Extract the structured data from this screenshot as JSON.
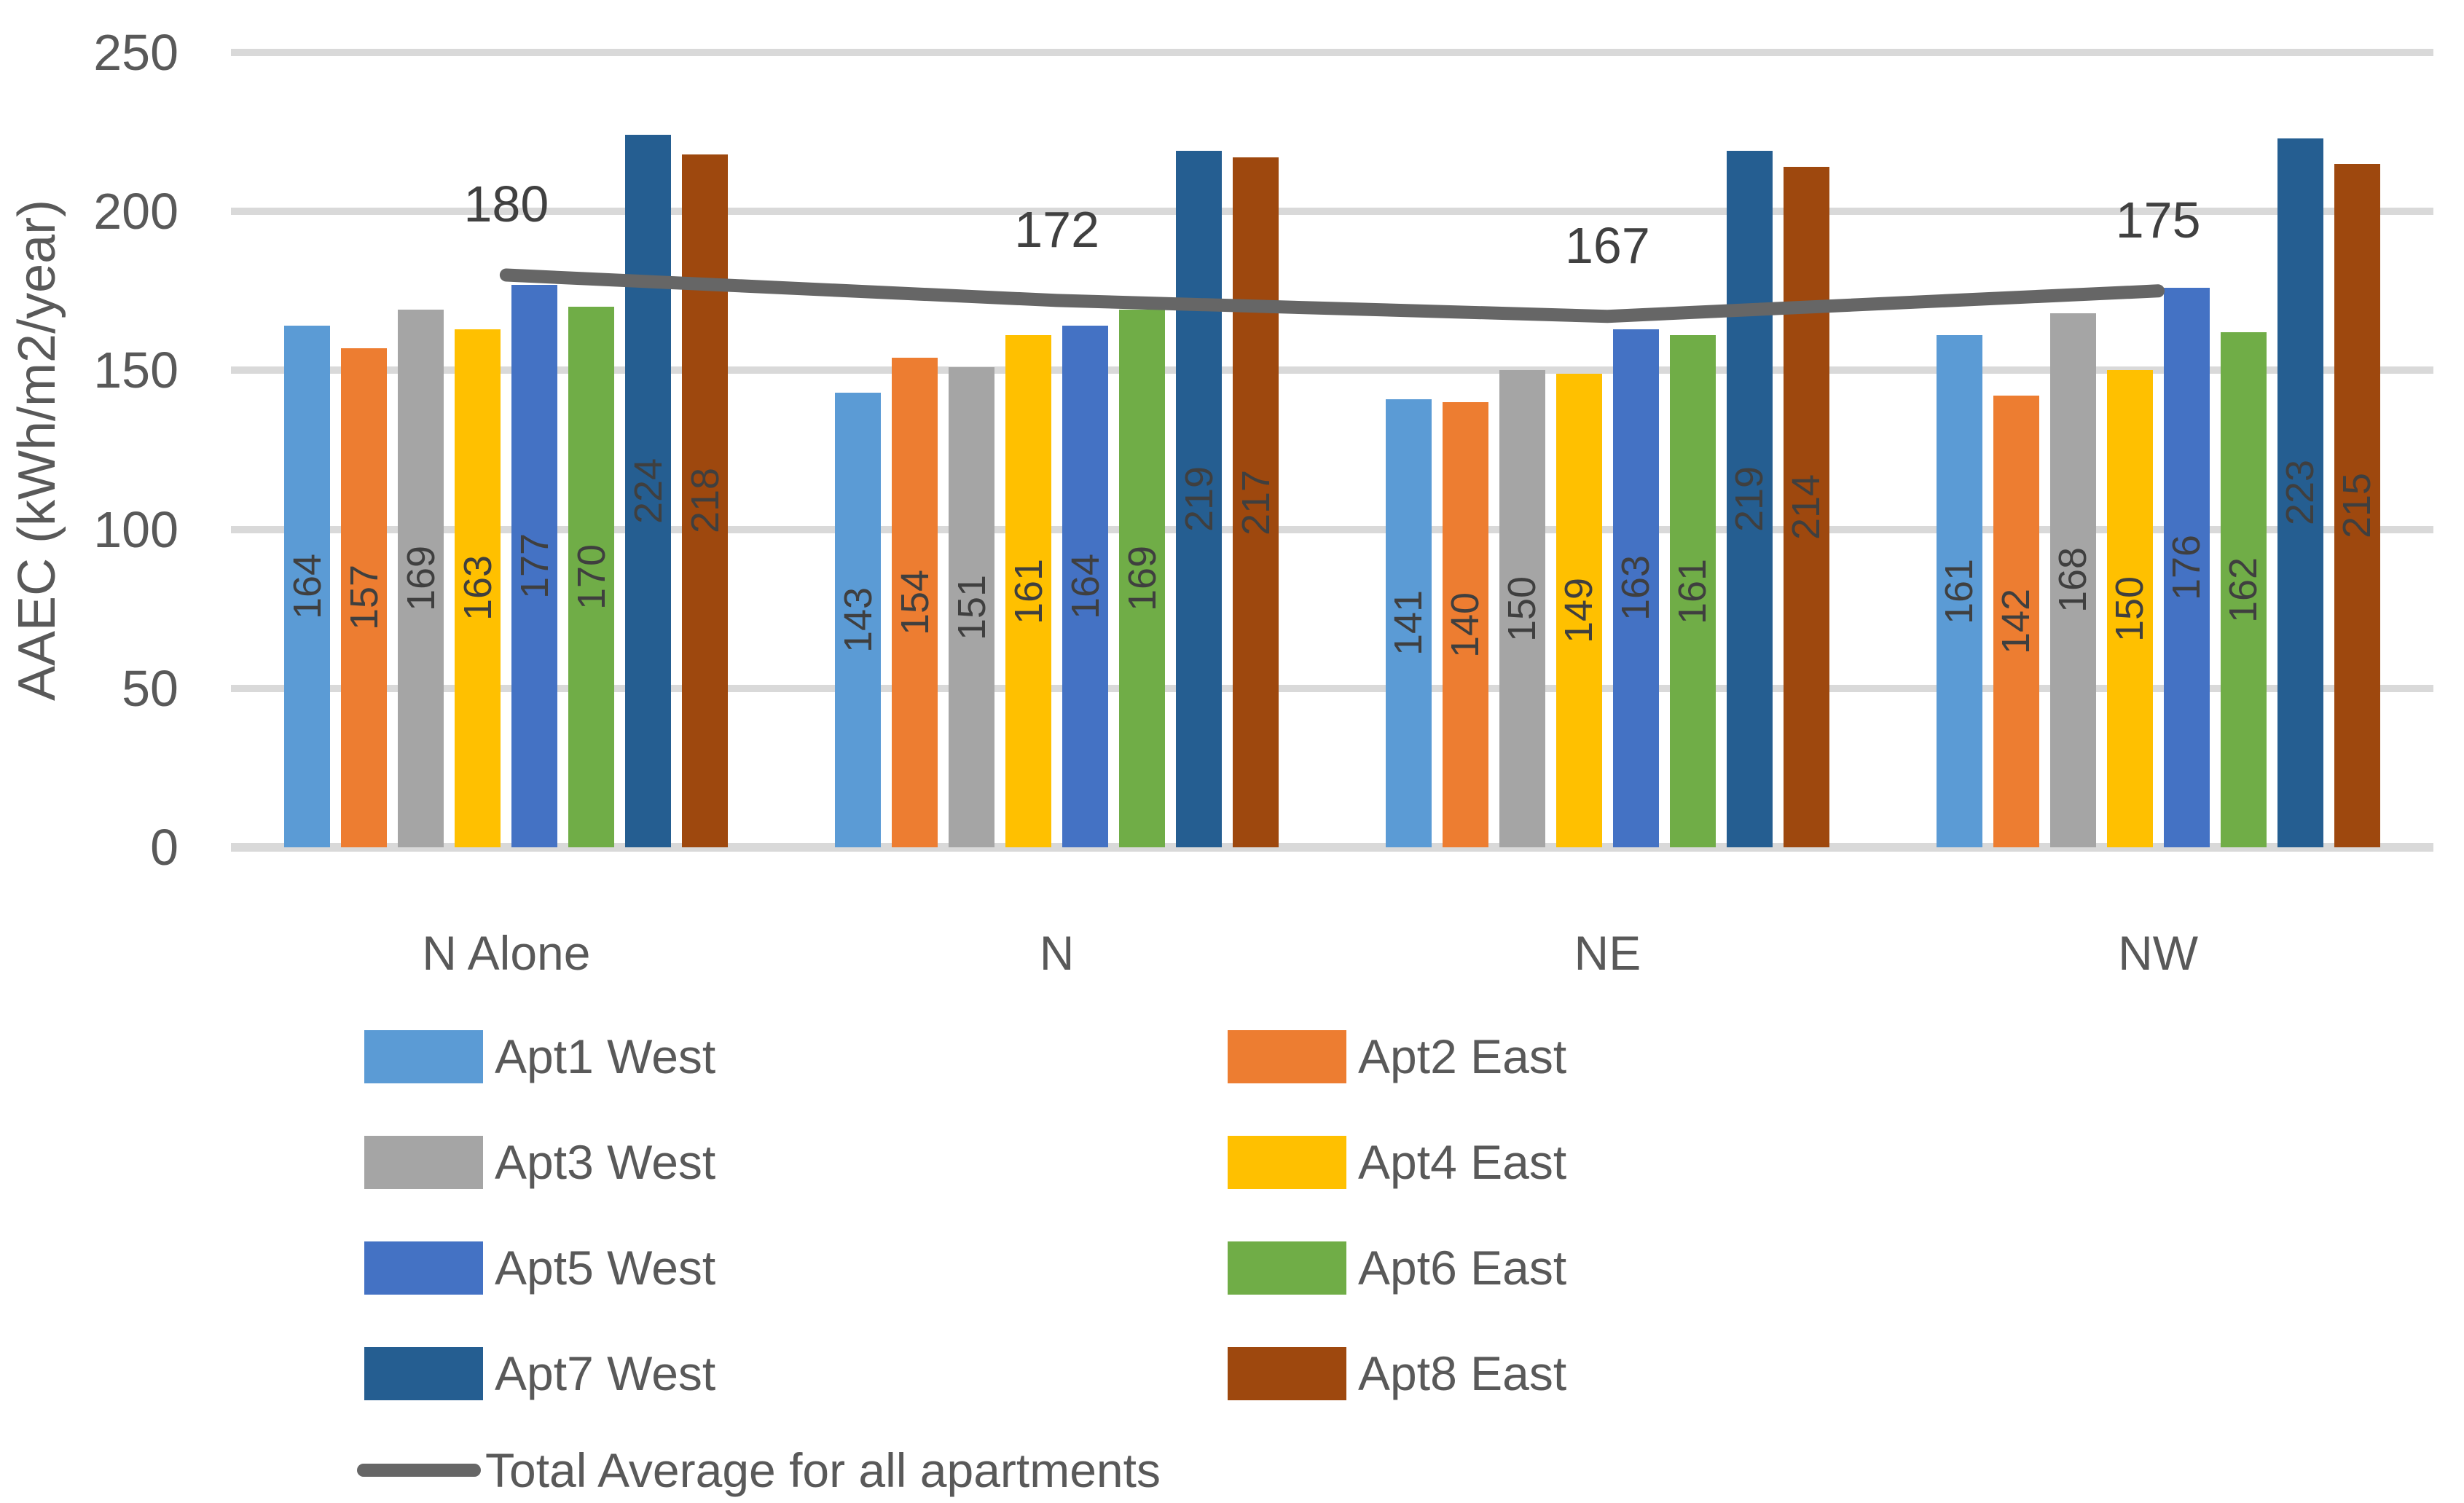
{
  "chart_data": {
    "type": "bar",
    "title": "",
    "xlabel": "",
    "ylabel": "AAEC (kWh/m2/year)",
    "ylim": [
      0,
      250
    ],
    "yticks": [
      0,
      50,
      100,
      150,
      200,
      250
    ],
    "grid": true,
    "legend_position": "bottom",
    "categories": [
      "N Alone",
      "N",
      "NE",
      "NW"
    ],
    "series": [
      {
        "name": "Apt1 West",
        "color": "#5B9BD5",
        "values": [
          164,
          143,
          141,
          161
        ]
      },
      {
        "name": "Apt2 East",
        "color": "#ED7D31",
        "values": [
          157,
          154,
          140,
          142
        ]
      },
      {
        "name": "Apt3 West",
        "color": "#A5A5A5",
        "values": [
          169,
          151,
          150,
          168
        ]
      },
      {
        "name": "Apt4 East",
        "color": "#FFC000",
        "values": [
          163,
          161,
          149,
          150
        ]
      },
      {
        "name": "Apt5 West",
        "color": "#4472C4",
        "values": [
          177,
          164,
          163,
          176
        ]
      },
      {
        "name": "Apt6 East",
        "color": "#70AD47",
        "values": [
          170,
          169,
          161,
          162
        ]
      },
      {
        "name": "Apt7 West",
        "color": "#255E91",
        "values": [
          224,
          219,
          219,
          223
        ]
      },
      {
        "name": "Apt8 East",
        "color": "#9E480E",
        "values": [
          218,
          217,
          214,
          215
        ]
      }
    ],
    "line_series": {
      "name": "Total Average for all apartments",
      "color": "#666666",
      "values": [
        180,
        172,
        167,
        175
      ]
    },
    "style_colors": {
      "grid": "#D9D9D9",
      "axis_text": "#595959",
      "annotation_text": "#404040",
      "bar_label_text": "#3F3F3F"
    }
  }
}
